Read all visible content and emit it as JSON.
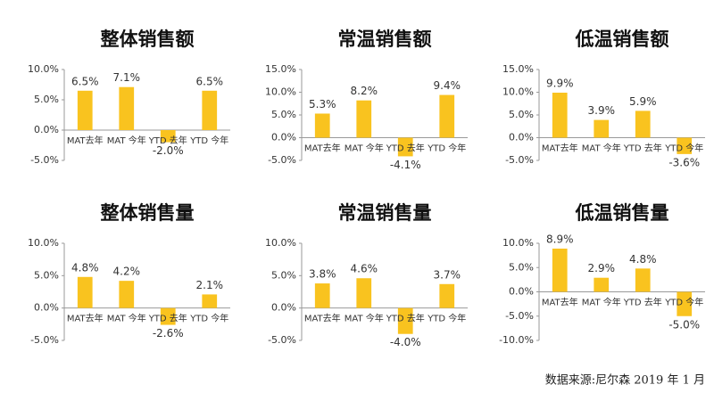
{
  "chart_data": [
    {
      "type": "bar",
      "title": "整体销售额",
      "categories": [
        "MAT去年",
        "MAT 今年",
        "YTD 去年",
        "YTD 今年"
      ],
      "values": [
        6.5,
        7.1,
        -2.0,
        6.5
      ],
      "value_labels": [
        "6.5%",
        "7.1%",
        "-2.0%",
        "6.5%"
      ],
      "color": "#f9c31f",
      "ylim": [
        -5,
        10
      ],
      "yticks": [
        {
          "value": -5,
          "label": "-5.0%"
        },
        {
          "value": 0,
          "label": "0.0%"
        },
        {
          "value": 5,
          "label": "5.0%"
        },
        {
          "value": 10,
          "label": "10.0%"
        }
      ],
      "grid": false
    },
    {
      "type": "bar",
      "title": "常温销售额",
      "categories": [
        "MAT去年",
        "MAT 今年",
        "YTD 去年",
        "YTD 今年"
      ],
      "values": [
        5.3,
        8.2,
        -4.1,
        9.4
      ],
      "value_labels": [
        "5.3%",
        "8.2%",
        "-4.1%",
        "9.4%"
      ],
      "color": "#f9c31f",
      "ylim": [
        -5,
        15
      ],
      "yticks": [
        {
          "value": -5,
          "label": "-5.0%"
        },
        {
          "value": 0,
          "label": "0.0%"
        },
        {
          "value": 5,
          "label": "5.0%"
        },
        {
          "value": 10,
          "label": "10.0%"
        },
        {
          "value": 15,
          "label": "15.0%"
        }
      ],
      "grid": false
    },
    {
      "type": "bar",
      "title": "低温销售额",
      "categories": [
        "MAT去年",
        "MAT 今年",
        "YTD 去年",
        "YTD 今年"
      ],
      "values": [
        9.9,
        3.9,
        5.9,
        -3.6
      ],
      "value_labels": [
        "9.9%",
        "3.9%",
        "5.9%",
        "-3.6%"
      ],
      "color": "#f9c31f",
      "ylim": [
        -5,
        15
      ],
      "yticks": [
        {
          "value": -5,
          "label": "-5.0%"
        },
        {
          "value": 0,
          "label": "0.0%"
        },
        {
          "value": 5,
          "label": "5.0%"
        },
        {
          "value": 10,
          "label": "10.0%"
        },
        {
          "value": 15,
          "label": "15.0%"
        }
      ],
      "grid": false
    },
    {
      "type": "bar",
      "title": "整体销售量",
      "categories": [
        "MAT去年",
        "MAT 今年",
        "YTD 去年",
        "YTD 今年"
      ],
      "values": [
        4.8,
        4.2,
        -2.6,
        2.1
      ],
      "value_labels": [
        "4.8%",
        "4.2%",
        "-2.6%",
        "2.1%"
      ],
      "color": "#f9c31f",
      "ylim": [
        -5,
        10
      ],
      "yticks": [
        {
          "value": -5,
          "label": "-5.0%"
        },
        {
          "value": 0,
          "label": "0.0%"
        },
        {
          "value": 5,
          "label": "5.0%"
        },
        {
          "value": 10,
          "label": "10.0%"
        }
      ],
      "grid": false
    },
    {
      "type": "bar",
      "title": "常温销售量",
      "categories": [
        "MAT去年",
        "MAT 今年",
        "YTD 去年",
        "YTD 今年"
      ],
      "values": [
        3.8,
        4.6,
        -4.0,
        3.7
      ],
      "value_labels": [
        "3.8%",
        "4.6%",
        "-4.0%",
        "3.7%"
      ],
      "color": "#f9c31f",
      "ylim": [
        -5,
        10
      ],
      "yticks": [
        {
          "value": -5,
          "label": "-5.0%"
        },
        {
          "value": 0,
          "label": "0.0%"
        },
        {
          "value": 5,
          "label": "5.0%"
        },
        {
          "value": 10,
          "label": "10.0%"
        }
      ],
      "grid": false
    },
    {
      "type": "bar",
      "title": "低温销售量",
      "categories": [
        "MAT去年",
        "MAT 今年",
        "YTD 去年",
        "YTD 今年"
      ],
      "values": [
        8.9,
        2.9,
        4.8,
        -5.0
      ],
      "value_labels": [
        "8.9%",
        "2.9%",
        "4.8%",
        "-5.0%"
      ],
      "color": "#f9c31f",
      "ylim": [
        -10,
        10
      ],
      "yticks": [
        {
          "value": -10,
          "label": "-10.0%"
        },
        {
          "value": -5,
          "label": "-5.0%"
        },
        {
          "value": 0,
          "label": "0.0%"
        },
        {
          "value": 5,
          "label": "5.0%"
        },
        {
          "value": 10,
          "label": "10.0%"
        }
      ],
      "grid": false
    }
  ],
  "source": "数据来源:尼尔森 2019 年 1 月"
}
